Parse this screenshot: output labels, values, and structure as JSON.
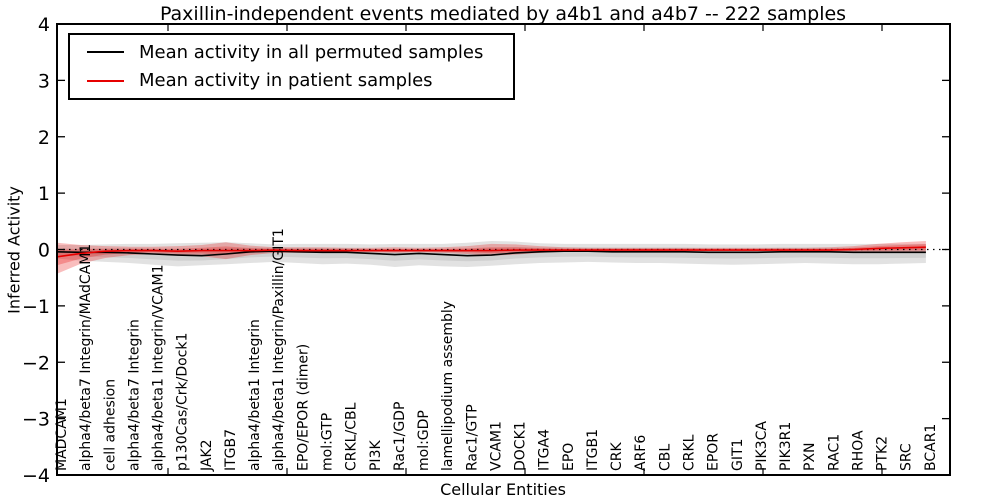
{
  "title": "Paxillin-independent events mediated by a4b1 and a4b7 -- 222 samples",
  "axes": {
    "ylabel": "Inferred Activity",
    "xlabel": "Cellular Entities",
    "yticks": [
      "4",
      "3",
      "2",
      "1",
      "0",
      "−1",
      "−2",
      "−3",
      "−4"
    ]
  },
  "legend": {
    "items": [
      {
        "label": "Mean activity in all permuted samples",
        "color": "#000000"
      },
      {
        "label": "Mean activity in patient samples",
        "color": "#e60000"
      }
    ]
  },
  "chart_data": {
    "type": "line",
    "title": "Paxillin-independent events mediated by a4b1 and a4b7 -- 222 samples",
    "xlabel": "Cellular Entities",
    "ylabel": "Inferred Activity",
    "ylim": [
      -4,
      4
    ],
    "zero_line_dotted": true,
    "legend_position": "upper left",
    "grid": false,
    "categories": [
      "MADCAM1",
      "alpha4/beta7 Integrin/MAdCAM1",
      "cell adhesion",
      "alpha4/beta7 Integrin",
      "alpha4/beta1 Integrin/VCAM1",
      "p130Cas/Crk/Dock1",
      "JAK2",
      "ITGB7",
      "alpha4/beta1 Integrin",
      "alpha4/beta1 Integrin/Paxillin/GIT1",
      "EPO/EPOR (dimer)",
      "mol:GTP",
      "CRKL/CBL",
      "PI3K",
      "Rac1/GDP",
      "mol:GDP",
      "lamellipodium assembly",
      "Rac1/GTP",
      "VCAM1",
      "DOCK1",
      "ITGA4",
      "EPO",
      "ITGB1",
      "CRK",
      "ARF6",
      "CBL",
      "CRKL",
      "EPOR",
      "GIT1",
      "PIK3CA",
      "PIK3R1",
      "PXN",
      "RAC1",
      "RHOA",
      "PTK2",
      "SRC",
      "BCAR1"
    ],
    "series": [
      {
        "name": "Mean activity in all permuted samples",
        "color": "#000000",
        "band_color": "#b4b4b4",
        "band_opacity": 0.38,
        "values": [
          -0.04,
          -0.05,
          -0.05,
          -0.06,
          -0.08,
          -0.1,
          -0.11,
          -0.08,
          -0.04,
          -0.03,
          -0.04,
          -0.05,
          -0.05,
          -0.07,
          -0.09,
          -0.07,
          -0.09,
          -0.11,
          -0.1,
          -0.06,
          -0.04,
          -0.03,
          -0.03,
          -0.04,
          -0.04,
          -0.04,
          -0.04,
          -0.05,
          -0.05,
          -0.05,
          -0.04,
          -0.04,
          -0.04,
          -0.05,
          -0.05,
          -0.05,
          -0.05
        ],
        "band_hi": [
          0.08,
          0.08,
          0.09,
          0.1,
          0.1,
          0.11,
          0.12,
          0.13,
          0.11,
          0.09,
          0.1,
          0.1,
          0.1,
          0.09,
          0.1,
          0.1,
          0.1,
          0.12,
          0.15,
          0.14,
          0.11,
          0.1,
          0.1,
          0.1,
          0.1,
          0.1,
          0.1,
          0.09,
          0.09,
          0.09,
          0.1,
          0.1,
          0.1,
          0.1,
          0.1,
          0.1,
          0.1
        ],
        "band_lo": [
          -0.16,
          -0.2,
          -0.22,
          -0.24,
          -0.27,
          -0.3,
          -0.28,
          -0.26,
          -0.24,
          -0.22,
          -0.24,
          -0.26,
          -0.25,
          -0.27,
          -0.31,
          -0.28,
          -0.3,
          -0.31,
          -0.29,
          -0.26,
          -0.24,
          -0.23,
          -0.22,
          -0.23,
          -0.24,
          -0.24,
          -0.25,
          -0.26,
          -0.27,
          -0.26,
          -0.25,
          -0.24,
          -0.25,
          -0.26,
          -0.26,
          -0.25,
          -0.24
        ]
      },
      {
        "name": "Mean activity in patient samples",
        "color": "#e60000",
        "band_color": "#e60000",
        "band_opacity": 0.26,
        "values": [
          -0.13,
          -0.07,
          -0.03,
          -0.02,
          -0.02,
          -0.03,
          -0.02,
          -0.02,
          -0.02,
          -0.01,
          -0.02,
          -0.02,
          -0.02,
          -0.02,
          -0.02,
          -0.02,
          -0.02,
          -0.02,
          -0.02,
          -0.01,
          -0.01,
          -0.01,
          -0.01,
          -0.01,
          -0.01,
          -0.01,
          -0.01,
          -0.01,
          -0.01,
          -0.01,
          -0.01,
          -0.01,
          -0.01,
          0.0,
          0.02,
          0.03,
          0.04
        ],
        "band_hi": [
          0.12,
          0.08,
          0.06,
          0.05,
          0.05,
          0.06,
          0.08,
          0.13,
          0.07,
          0.04,
          0.04,
          0.04,
          0.03,
          0.03,
          0.04,
          0.03,
          0.04,
          0.06,
          0.1,
          0.09,
          0.06,
          0.04,
          0.03,
          0.03,
          0.03,
          0.03,
          0.03,
          0.03,
          0.03,
          0.03,
          0.03,
          0.03,
          0.04,
          0.06,
          0.1,
          0.13,
          0.15
        ],
        "band_lo": [
          -0.43,
          -0.25,
          -0.15,
          -0.1,
          -0.08,
          -0.1,
          -0.12,
          -0.17,
          -0.1,
          -0.06,
          -0.06,
          -0.06,
          -0.05,
          -0.05,
          -0.06,
          -0.05,
          -0.06,
          -0.08,
          -0.11,
          -0.09,
          -0.06,
          -0.04,
          -0.03,
          -0.03,
          -0.03,
          -0.03,
          -0.03,
          -0.03,
          -0.03,
          -0.03,
          -0.03,
          -0.03,
          -0.04,
          -0.05,
          -0.06,
          -0.06,
          -0.06
        ]
      }
    ]
  }
}
